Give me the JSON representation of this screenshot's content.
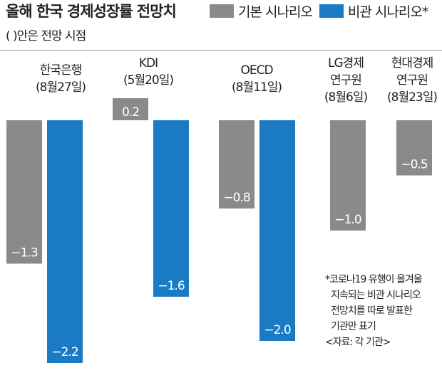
{
  "header": {
    "title": "올해 한국 경제성장률 전망치",
    "subtitle": "( )안은 전망 시점"
  },
  "legend": [
    {
      "name": "기본 시나리오",
      "color": "#8a8a8a"
    },
    {
      "name": "비관 시나리오*",
      "color": "#1a7bc4"
    }
  ],
  "chart_data": {
    "type": "bar",
    "categories": [
      {
        "name": [
          "한국은행",
          "(8월27일)"
        ]
      },
      {
        "name": [
          "KDI",
          "(5월20일)"
        ]
      },
      {
        "name": [
          "OECD",
          "(8월11일)"
        ]
      },
      {
        "name": [
          "LG경제",
          "연구원",
          "(8월6일)"
        ]
      },
      {
        "name": [
          "현대경제",
          "연구원",
          "(8월23일)"
        ]
      }
    ],
    "series": [
      {
        "name": "기본 시나리오",
        "color": "#8a8a8a",
        "values": [
          -1.3,
          0.2,
          -0.8,
          -1.0,
          -0.5
        ],
        "labels": [
          "−1.3",
          "0.2",
          "−0.8",
          "−1.0",
          "−0.5"
        ]
      },
      {
        "name": "비관 시나리오*",
        "color": "#1a7bc4",
        "values": [
          -2.2,
          -1.6,
          -2.0,
          null,
          null
        ],
        "labels": [
          "−2.2",
          "−1.6",
          "−2.0",
          null,
          null
        ]
      }
    ],
    "ylim": [
      -2.2,
      0.2
    ]
  },
  "note": {
    "lines": [
      "*코로나19 유행이 올겨울",
      "지속되는 비관 시나리오",
      "전망치를 따로 발표한",
      "기관만 표기",
      "<자료: 각 기관>"
    ]
  }
}
